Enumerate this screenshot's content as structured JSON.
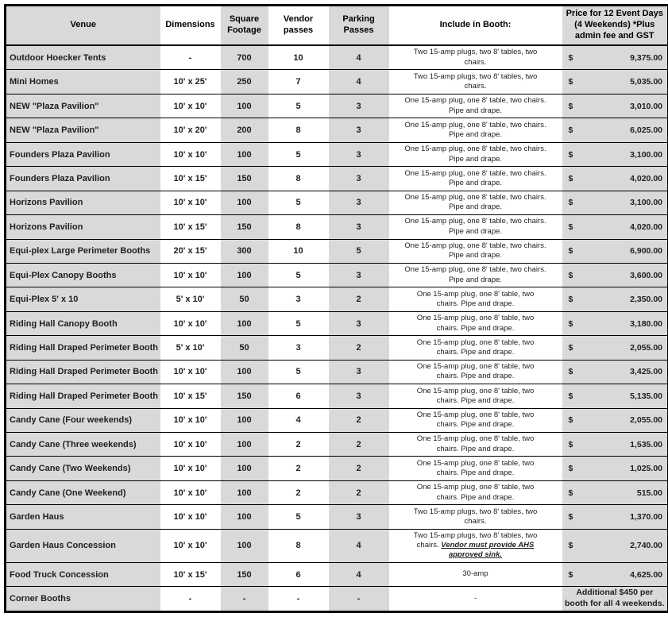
{
  "colors": {
    "column_shade": "#d9d9d9",
    "grid_line": "#000000",
    "text": "#1f1f1f",
    "background": "#ffffff"
  },
  "table": {
    "columns": [
      {
        "key": "venue",
        "label": "Venue"
      },
      {
        "key": "dimensions",
        "label": "Dimensions"
      },
      {
        "key": "sqft",
        "label": "Square\nFootage"
      },
      {
        "key": "vendor",
        "label": "Vendor\npasses"
      },
      {
        "key": "parking",
        "label": "Parking\nPasses"
      },
      {
        "key": "include",
        "label": "Include in Booth:"
      },
      {
        "key": "price",
        "label": "Price for 12 Event Days\n(4 Weekends) *Plus\nadmin fee and GST"
      }
    ],
    "rows": [
      {
        "venue": "Outdoor Hoecker Tents",
        "dimensions": "-",
        "sqft": "700",
        "vendor": "10",
        "parking": "4",
        "include": "Two 15-amp plugs, two 8' tables, two\nchairs.",
        "currency": "$",
        "price": "9,375.00"
      },
      {
        "venue": "Mini Homes",
        "dimensions": "10' x 25'",
        "sqft": "250",
        "vendor": "7",
        "parking": "4",
        "include": "Two 15-amp plugs, two 8' tables, two\nchairs.",
        "currency": "$",
        "price": "5,035.00"
      },
      {
        "venue": "NEW \"Plaza Pavilion\"",
        "dimensions": "10' x 10'",
        "sqft": "100",
        "vendor": "5",
        "parking": "3",
        "include": "One 15-amp plug, one 8' table, two chairs.\nPipe and drape.",
        "currency": "$",
        "price": "3,010.00"
      },
      {
        "venue": "NEW \"Plaza Pavilion\"",
        "dimensions": "10' x 20'",
        "sqft": "200",
        "vendor": "8",
        "parking": "3",
        "include": "One 15-amp plug, one 8' table, two chairs.\nPipe and drape.",
        "currency": "$",
        "price": "6,025.00"
      },
      {
        "venue": "Founders Plaza Pavilion",
        "dimensions": "10' x 10'",
        "sqft": "100",
        "vendor": "5",
        "parking": "3",
        "include": "One 15-amp plug, one 8' table, two chairs.\nPipe and drape.",
        "currency": "$",
        "price": "3,100.00"
      },
      {
        "venue": "Founders Plaza Pavilion",
        "dimensions": "10' x 15'",
        "sqft": "150",
        "vendor": "8",
        "parking": "3",
        "include": "One 15-amp plug, one 8' table, two chairs.\nPipe and drape.",
        "currency": "$",
        "price": "4,020.00"
      },
      {
        "venue": "Horizons Pavilion",
        "dimensions": "10' x 10'",
        "sqft": "100",
        "vendor": "5",
        "parking": "3",
        "include": "One 15-amp plug, one 8' table, two chairs.\nPipe and drape.",
        "currency": "$",
        "price": "3,100.00"
      },
      {
        "venue": "Horizons Pavilion",
        "dimensions": "10' x 15'",
        "sqft": "150",
        "vendor": "8",
        "parking": "3",
        "include": "One 15-amp plug, one 8' table, two chairs.\nPipe and drape.",
        "currency": "$",
        "price": "4,020.00"
      },
      {
        "venue": "Equi-plex Large Perimeter Booths",
        "dimensions": "20' x 15'",
        "sqft": "300",
        "vendor": "10",
        "parking": "5",
        "include": "One 15-amp plug, one 8' table, two chairs.\nPipe and drape.",
        "currency": "$",
        "price": "6,900.00"
      },
      {
        "venue": "Equi-Plex Canopy Booths",
        "dimensions": "10' x 10'",
        "sqft": "100",
        "vendor": "5",
        "parking": "3",
        "include": "One 15-amp plug, one 8' table, two chairs.\nPipe and drape.",
        "currency": "$",
        "price": "3,600.00"
      },
      {
        "venue": "Equi-Plex 5' x 10",
        "dimensions": "5' x 10'",
        "sqft": "50",
        "vendor": "3",
        "parking": "2",
        "include": "One 15-amp plug, one  8' table, two\nchairs. Pipe and drape.",
        "currency": "$",
        "price": "2,350.00"
      },
      {
        "venue": "Riding Hall Canopy Booth",
        "dimensions": "10' x 10'",
        "sqft": "100",
        "vendor": "5",
        "parking": "3",
        "include": "One 15-amp plug, one  8' table, two\nchairs. Pipe and drape.",
        "currency": "$",
        "price": "3,180.00"
      },
      {
        "venue": "Riding Hall Draped Perimeter Booth",
        "dimensions": "5' x 10'",
        "sqft": "50",
        "vendor": "3",
        "parking": "2",
        "include": "One 15-amp plug, one  8' table, two\nchairs. Pipe and drape.",
        "currency": "$",
        "price": "2,055.00"
      },
      {
        "venue": "Riding Hall Draped Perimeter Booth",
        "dimensions": "10' x 10'",
        "sqft": "100",
        "vendor": "5",
        "parking": "3",
        "include": "One 15-amp plug, one  8' table, two\nchairs. Pipe and drape.",
        "currency": "$",
        "price": "3,425.00"
      },
      {
        "venue": "Riding Hall Draped Perimeter Booth",
        "dimensions": "10' x 15'",
        "sqft": "150",
        "vendor": "6",
        "parking": "3",
        "include": "One 15-amp plug, one  8' table, two\nchairs. Pipe and drape.",
        "currency": "$",
        "price": "5,135.00"
      },
      {
        "venue": "Candy Cane (Four weekends)",
        "dimensions": "10' x 10'",
        "sqft": "100",
        "vendor": "4",
        "parking": "2",
        "include": "One 15-amp plug, one  8' table, two\nchairs. Pipe and drape.",
        "currency": "$",
        "price": "2,055.00"
      },
      {
        "venue": "Candy Cane (Three weekends)",
        "dimensions": "10' x 10'",
        "sqft": "100",
        "vendor": "2",
        "parking": "2",
        "include": "One 15-amp plug, one  8' table, two\nchairs. Pipe and drape.",
        "currency": "$",
        "price": "1,535.00"
      },
      {
        "venue": "Candy Cane (Two Weekends)",
        "dimensions": "10' x 10'",
        "sqft": "100",
        "vendor": "2",
        "parking": "2",
        "include": "One 15-amp plug, one  8' table, two\nchairs. Pipe and drape.",
        "currency": "$",
        "price": "1,025.00"
      },
      {
        "venue": "Candy Cane (One Weekend)",
        "dimensions": "10' x 10'",
        "sqft": "100",
        "vendor": "2",
        "parking": "2",
        "include": "One 15-amp plug, one  8' table, two\nchairs. Pipe and drape.",
        "currency": "$",
        "price": "515.00"
      },
      {
        "venue": "Garden Haus",
        "dimensions": "10' x 10'",
        "sqft": "100",
        "vendor": "5",
        "parking": "3",
        "include": "Two 15-amp plugs, two 8' tables, two\nchairs.",
        "currency": "$",
        "price": "1,370.00"
      },
      {
        "venue": "Garden Haus Concession",
        "dimensions": "10' x 10'",
        "sqft": "100",
        "vendor": "8",
        "parking": "4",
        "include": "Two 15-amp plugs, two 8' tables, two\nchairs. ",
        "include_em": "Vendor must provide AHS\napproved sink.",
        "currency": "$",
        "price": "2,740.00"
      },
      {
        "venue": "Food Truck Concession",
        "dimensions": "10' x 15'",
        "sqft": "150",
        "vendor": "6",
        "parking": "4",
        "include": "30-amp",
        "currency": "$",
        "price": "4,625.00"
      },
      {
        "venue": "Corner Booths",
        "dimensions": "-",
        "sqft": "-",
        "vendor": "-",
        "parking": "-",
        "include": "-",
        "price_note": "Additional $450 per\nbooth for all 4 weekends."
      }
    ]
  }
}
